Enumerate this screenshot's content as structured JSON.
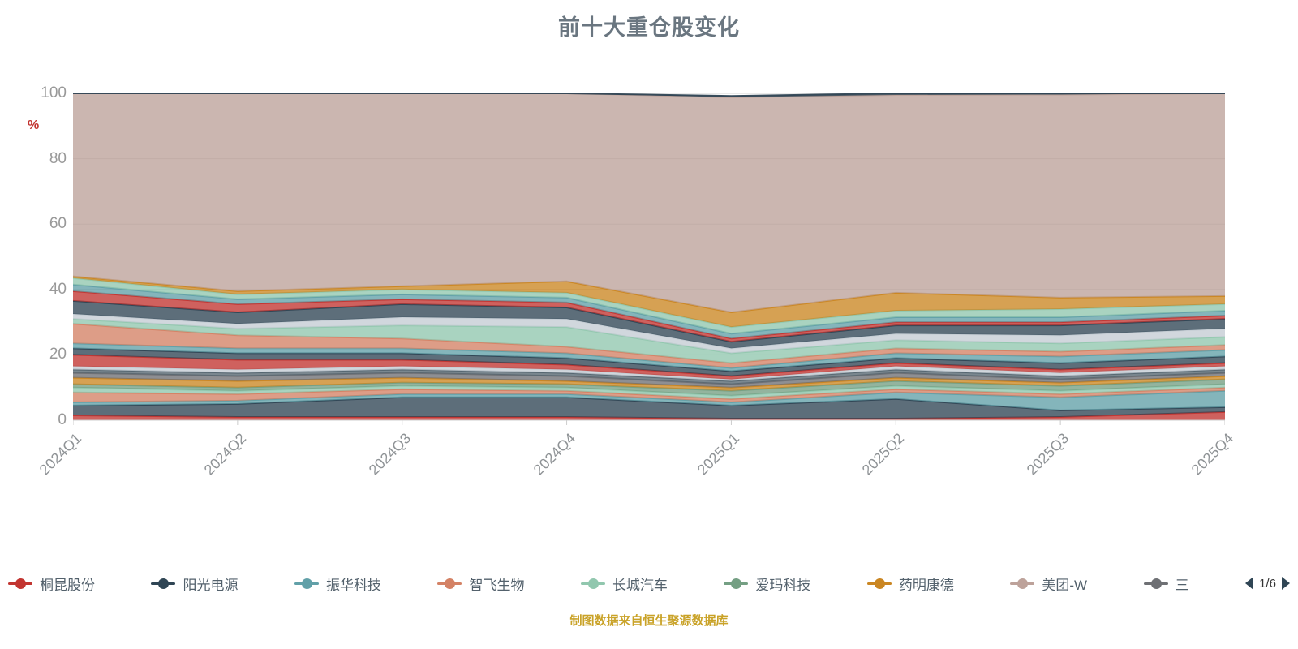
{
  "title": "前十大重仓股变化",
  "footer": "制图数据来自恒生聚源数据库",
  "y_axis": {
    "name": "%",
    "ticks": [
      0,
      20,
      40,
      60,
      80,
      100
    ]
  },
  "legend": {
    "page": "1/6",
    "items": [
      {
        "label": "桐昆股份",
        "color": "#c23531"
      },
      {
        "label": "阳光电源",
        "color": "#2f4554"
      },
      {
        "label": "振华科技",
        "color": "#61a0a8"
      },
      {
        "label": "智飞生物",
        "color": "#d48265"
      },
      {
        "label": "长城汽车",
        "color": "#91c7ae"
      },
      {
        "label": "爱玛科技",
        "color": "#749f83"
      },
      {
        "label": "药明康德",
        "color": "#ca8622"
      },
      {
        "label": "美团-W",
        "color": "#bda29a"
      },
      {
        "label": "三",
        "color": "#6e7074"
      }
    ]
  },
  "chart_data": {
    "type": "area",
    "stacked": true,
    "title": "前十大重仓股变化",
    "ylabel": "%",
    "ylim": [
      0,
      100
    ],
    "grid": true,
    "legend_position": "bottom",
    "x": [
      "2024Q1",
      "2024Q2",
      "2024Q3",
      "2024Q4",
      "2025Q1",
      "2025Q2",
      "2025Q3",
      "2025Q4"
    ],
    "series": [
      {
        "name": "桐昆股份",
        "color": "#c23531",
        "values": [
          1.5,
          1,
          1,
          1,
          0.5,
          0.5,
          1,
          2.5
        ]
      },
      {
        "name": "阳光电源",
        "color": "#2f4554",
        "values": [
          3,
          4,
          6,
          6,
          4,
          6,
          2,
          1.5
        ]
      },
      {
        "name": "振华科技",
        "color": "#61a0a8",
        "values": [
          1,
          1,
          1,
          1,
          1,
          2,
          4,
          5
        ]
      },
      {
        "name": "",
        "color": "#d48265",
        "values": [
          3,
          2,
          1.5,
          1,
          1,
          1,
          1,
          1
        ]
      },
      {
        "name": "",
        "color": "#91c7ae",
        "values": [
          1.5,
          1,
          1,
          1,
          1,
          1,
          1,
          1
        ]
      },
      {
        "name": "爱玛科技",
        "color": "#749f83",
        "values": [
          1,
          1,
          1,
          1,
          1.5,
          1.5,
          1.5,
          1.5
        ]
      },
      {
        "name": "",
        "color": "#ca8622",
        "values": [
          2,
          2,
          1.5,
          1,
          1,
          1,
          1,
          1
        ]
      },
      {
        "name": "三",
        "color": "#6e7074",
        "values": [
          1.5,
          1.5,
          1.5,
          1.5,
          1,
          1.5,
          1,
          1
        ]
      },
      {
        "name": "",
        "color": "#546570",
        "values": [
          1,
          1,
          1,
          1,
          1,
          1,
          1,
          1
        ]
      },
      {
        "name": "",
        "color": "#c4ccd3",
        "values": [
          1,
          1,
          1,
          1,
          0.5,
          1,
          1,
          1
        ]
      },
      {
        "name": "",
        "color": "#c23531",
        "values": [
          3.5,
          3,
          2,
          1.5,
          1,
          1,
          1,
          1
        ]
      },
      {
        "name": "",
        "color": "#2f4554",
        "values": [
          2,
          2,
          2,
          2,
          1.5,
          1.5,
          2,
          2
        ]
      },
      {
        "name": "",
        "color": "#61a0a8",
        "values": [
          1.5,
          1.5,
          1.5,
          1.5,
          1,
          1.5,
          2,
          2
        ]
      },
      {
        "name": "智飞生物",
        "color": "#d48265",
        "values": [
          6,
          4,
          3,
          2,
          1.5,
          1.5,
          1.5,
          1.5
        ]
      },
      {
        "name": "长城汽车",
        "color": "#91c7ae",
        "values": [
          1.5,
          2,
          4,
          6,
          3,
          2.5,
          2.5,
          2.5
        ]
      },
      {
        "name": "",
        "color": "#c4ccd3",
        "values": [
          1.5,
          1.5,
          2.5,
          2.5,
          1.5,
          2,
          2.5,
          2.5
        ]
      },
      {
        "name": "",
        "color": "#2f4554",
        "values": [
          4,
          3.5,
          4,
          3.5,
          2,
          2.5,
          3,
          3
        ]
      },
      {
        "name": "",
        "color": "#c23531",
        "values": [
          3,
          2.5,
          1.5,
          1.5,
          1,
          1,
          1,
          1
        ]
      },
      {
        "name": "",
        "color": "#61a0a8",
        "values": [
          2,
          1.5,
          1.5,
          1.5,
          1.5,
          1.5,
          1.5,
          1.5
        ]
      },
      {
        "name": "",
        "color": "#91c7ae",
        "values": [
          2,
          1.5,
          1.5,
          1.5,
          2,
          2,
          2.5,
          2
        ]
      },
      {
        "name": "药明康德",
        "color": "#ca8622",
        "values": [
          0.5,
          1,
          1,
          3.5,
          4.5,
          5.5,
          3.5,
          2.5
        ]
      },
      {
        "name": "美团-W",
        "color": "#bda29a",
        "values": [
          56,
          60.5,
          59,
          57.5,
          65.8,
          60.5,
          62.1,
          62
        ]
      },
      {
        "name": "",
        "color": "#2f4554",
        "values": [
          0,
          0,
          0,
          0,
          0.4,
          0.5,
          0.4,
          0
        ]
      }
    ]
  }
}
